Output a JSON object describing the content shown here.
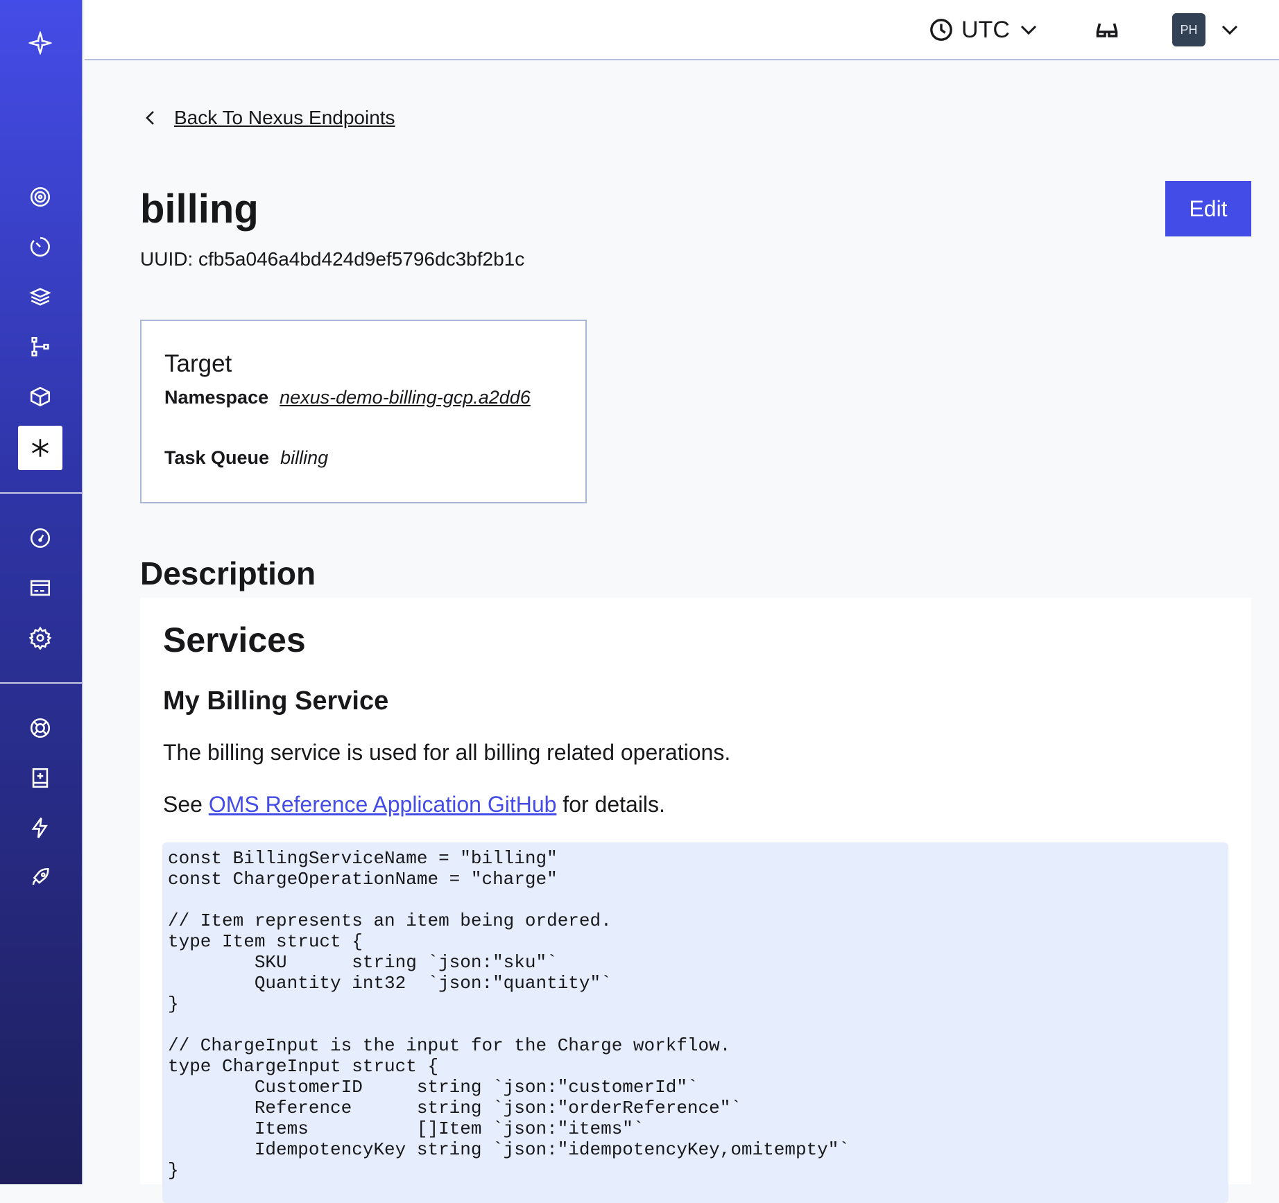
{
  "topbar": {
    "timezone": "UTC",
    "avatar_initials": "PH"
  },
  "sidebar": {
    "items": [
      "namespaces",
      "workflows",
      "schedules",
      "deployments",
      "batch",
      "nexus",
      "usage",
      "billing",
      "settings",
      "support",
      "docs",
      "feedback",
      "getting-started"
    ],
    "active": "nexus"
  },
  "back_link": "Back To Nexus Endpoints",
  "endpoint": {
    "name": "billing",
    "uuid": "UUID: cfb5a046a4bd424d9ef5796dc3bf2b1c",
    "edit_label": "Edit"
  },
  "target": {
    "heading": "Target",
    "namespace_label": "Namespace",
    "namespace_value": "nexus-demo-billing-gcp.a2dd6",
    "task_queue_label": "Task Queue",
    "task_queue_value": "billing"
  },
  "description": {
    "heading": "Description",
    "h1": "Services",
    "h2": "My Billing Service",
    "paragraph": "The billing service is used for all billing related operations.",
    "see_prefix": "See ",
    "link_text": "OMS Reference Application GitHub",
    "see_suffix": " for details.",
    "code": "const BillingServiceName = \"billing\"\nconst ChargeOperationName = \"charge\"\n\n// Item represents an item being ordered.\ntype Item struct {\n        SKU      string `json:\"sku\"`\n        Quantity int32  `json:\"quantity\"`\n}\n\n// ChargeInput is the input for the Charge workflow.\ntype ChargeInput struct {\n        CustomerID     string `json:\"customerId\"`\n        Reference      string `json:\"orderReference\"`\n        Items          []Item `json:\"items\"`\n        IdempotencyKey string `json:\"idempotencyKey,omitempty\"`\n}"
  },
  "colors": {
    "accent": "#444ce7",
    "code_bg": "#e6edfd",
    "avatar_bg": "#334155"
  }
}
